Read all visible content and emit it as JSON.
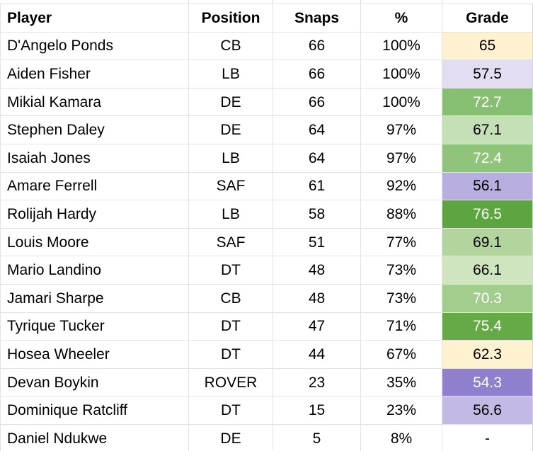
{
  "headers": {
    "player": "Player",
    "position": "Position",
    "snaps": "Snaps",
    "percent": "%",
    "grade": "Grade"
  },
  "rows": [
    {
      "player": "D'Angelo Ponds",
      "position": "CB",
      "snaps": "66",
      "percent": "100%",
      "grade": "65",
      "grade_bg": "#fef2d0",
      "grade_fg": "#000000"
    },
    {
      "player": "Aiden Fisher",
      "position": "LB",
      "snaps": "66",
      "percent": "100%",
      "grade": "57.5",
      "grade_bg": "#e3ddf1",
      "grade_fg": "#000000"
    },
    {
      "player": "Mikial Kamara",
      "position": "DE",
      "snaps": "66",
      "percent": "100%",
      "grade": "72.7",
      "grade_bg": "#86bf71",
      "grade_fg": "#ffffff"
    },
    {
      "player": "Stephen Daley",
      "position": "DE",
      "snaps": "64",
      "percent": "97%",
      "grade": "67.1",
      "grade_bg": "#c6e0b6",
      "grade_fg": "#000000"
    },
    {
      "player": "Isaiah Jones",
      "position": "LB",
      "snaps": "64",
      "percent": "97%",
      "grade": "72.4",
      "grade_bg": "#8fc47a",
      "grade_fg": "#ffffff"
    },
    {
      "player": "Amare Ferrell",
      "position": "SAF",
      "snaps": "61",
      "percent": "92%",
      "grade": "56.1",
      "grade_bg": "#b8aee0",
      "grade_fg": "#000000"
    },
    {
      "player": "Rolijah Hardy",
      "position": "LB",
      "snaps": "58",
      "percent": "88%",
      "grade": "76.5",
      "grade_bg": "#5da53e",
      "grade_fg": "#ffffff"
    },
    {
      "player": "Louis Moore",
      "position": "SAF",
      "snaps": "51",
      "percent": "77%",
      "grade": "69.1",
      "grade_bg": "#b1d59c",
      "grade_fg": "#000000"
    },
    {
      "player": "Mario Landino",
      "position": "DT",
      "snaps": "48",
      "percent": "73%",
      "grade": "66.1",
      "grade_bg": "#cfe5c0",
      "grade_fg": "#000000"
    },
    {
      "player": "Jamari Sharpe",
      "position": "CB",
      "snaps": "48",
      "percent": "73%",
      "grade": "70.3",
      "grade_bg": "#a3cd8c",
      "grade_fg": "#ffffff"
    },
    {
      "player": "Tyrique Tucker",
      "position": "DT",
      "snaps": "47",
      "percent": "71%",
      "grade": "75.4",
      "grade_bg": "#66aa47",
      "grade_fg": "#ffffff"
    },
    {
      "player": "Hosea Wheeler",
      "position": "DT",
      "snaps": "44",
      "percent": "67%",
      "grade": "62.3",
      "grade_bg": "#fef2d0",
      "grade_fg": "#000000"
    },
    {
      "player": "Devan Boykin",
      "position": "ROVER",
      "snaps": "23",
      "percent": "35%",
      "grade": "54.3",
      "grade_bg": "#8f7fcc",
      "grade_fg": "#ffffff"
    },
    {
      "player": "Dominique Ratcliff",
      "position": "DT",
      "snaps": "15",
      "percent": "23%",
      "grade": "56.6",
      "grade_bg": "#c2b9e4",
      "grade_fg": "#000000"
    },
    {
      "player": "Daniel Ndukwe",
      "position": "DE",
      "snaps": "5",
      "percent": "8%",
      "grade": "-",
      "grade_bg": "#ffffff",
      "grade_fg": "#000000"
    }
  ]
}
